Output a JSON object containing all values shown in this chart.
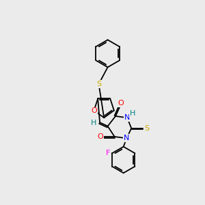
{
  "bg_color": "#ebebeb",
  "bond_color": "#000000",
  "atom_colors": {
    "O": "#ff0000",
    "N": "#0000ff",
    "S": "#ccaa00",
    "F": "#ff00ff",
    "H": "#008080",
    "C": "#000000"
  },
  "fig_size": [
    3.0,
    3.0
  ],
  "dpi": 100
}
